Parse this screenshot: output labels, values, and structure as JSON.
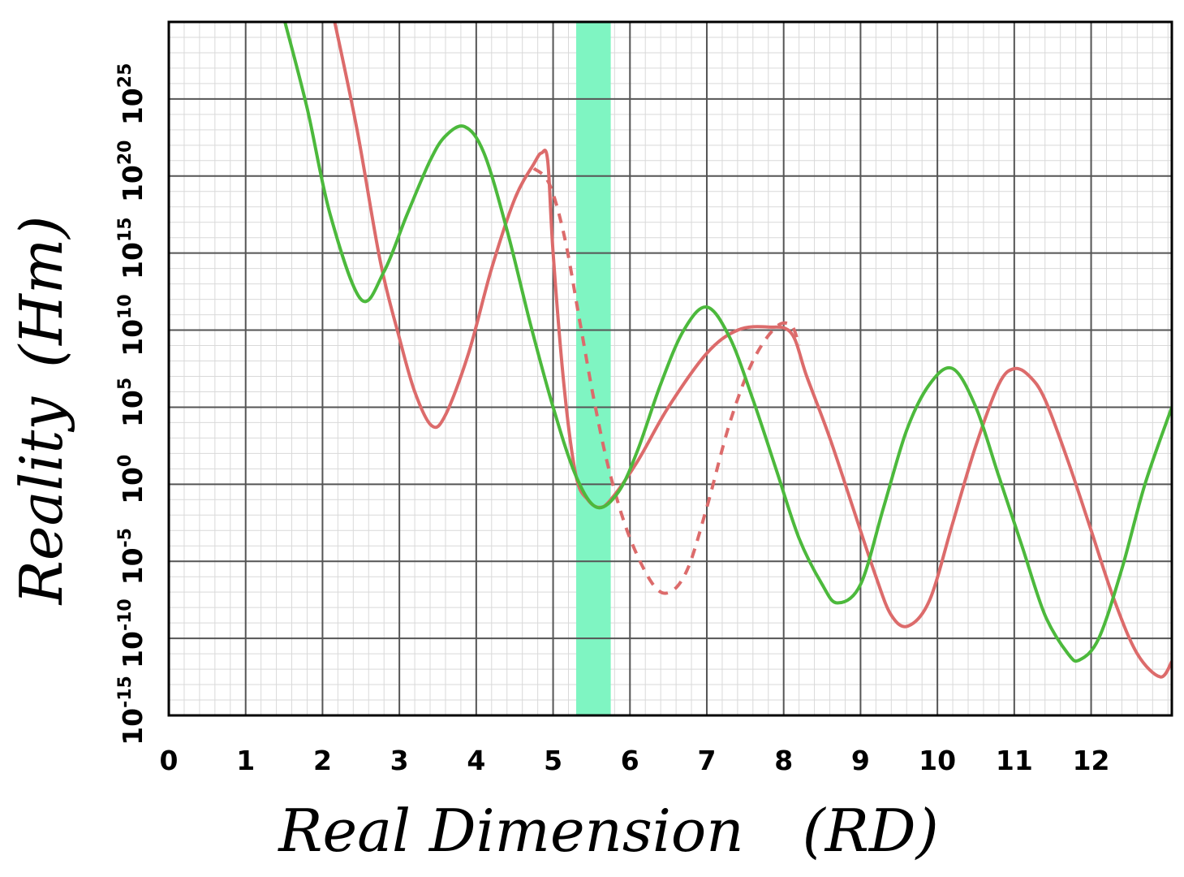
{
  "chart_data": {
    "type": "line",
    "xlabel": "Real Dimension  (RD)",
    "ylabel": "Reality (Hm)",
    "xlim": [
      0,
      13.05
    ],
    "ylim_log10": [
      -15,
      30
    ],
    "x_ticks": [
      "0",
      "1",
      "2",
      "3",
      "4",
      "5",
      "6",
      "7",
      "8",
      "9",
      "10",
      "11",
      "12"
    ],
    "y_ticks": [
      {
        "base": "10",
        "exp": "-15",
        "value": -15
      },
      {
        "base": "10",
        "exp": "-10",
        "value": -10
      },
      {
        "base": "10",
        "exp": "-5",
        "value": -5
      },
      {
        "base": "10",
        "exp": "0",
        "value": 0
      },
      {
        "base": "10",
        "exp": "5",
        "value": 5
      },
      {
        "base": "10",
        "exp": "10",
        "value": 10
      },
      {
        "base": "10",
        "exp": "15",
        "value": 15
      },
      {
        "base": "10",
        "exp": "20",
        "value": 20
      },
      {
        "base": "10",
        "exp": "25",
        "value": 25
      }
    ],
    "grid": true,
    "y_scale": "log",
    "highlight_band": {
      "x_start": 5.3,
      "x_end": 5.75,
      "color": "#7ff5c2"
    },
    "colors": {
      "green": "#4cb93c",
      "red": "#dc6b6b",
      "major_grid": "#555555",
      "minor_grid": "#d9d9d9",
      "axis": "#000000"
    },
    "series": [
      {
        "style": "solid",
        "color": "#4cb93c",
        "x": [
          1.5,
          1.8,
          2.1,
          2.5,
          2.8,
          3.1,
          3.4,
          3.6,
          3.85,
          4.1,
          4.4,
          4.7,
          5.0,
          5.3,
          5.57,
          5.85,
          6.1,
          6.4,
          6.7,
          7.0,
          7.3,
          7.6,
          7.9,
          8.2,
          8.5,
          8.7,
          9.0,
          9.3,
          9.6,
          9.9,
          10.2,
          10.5,
          10.8,
          11.1,
          11.4,
          11.7,
          11.85,
          12.1,
          12.4,
          12.7,
          13.05
        ],
        "y": [
          30.2,
          24.4,
          17.5,
          12.0,
          13.8,
          17.5,
          21.0,
          22.6,
          23.2,
          21.5,
          16.5,
          10.5,
          5.0,
          0.5,
          -1.5,
          -0.5,
          2.2,
          6.5,
          10.0,
          11.5,
          9.5,
          5.5,
          1.0,
          -3.5,
          -6.5,
          -7.7,
          -6.5,
          -1.5,
          3.5,
          6.5,
          7.5,
          5.0,
          0.5,
          -4.0,
          -8.5,
          -11.0,
          -11.4,
          -10.0,
          -5.5,
          0.0,
          5.0
        ]
      },
      {
        "style": "solid",
        "color": "#dc6b6b",
        "x": [
          2.15,
          2.45,
          2.75,
          3.0,
          3.2,
          3.42,
          3.6,
          3.9,
          4.2,
          4.5,
          4.75,
          4.85,
          4.93,
          5.0,
          5.15,
          5.3,
          5.45,
          5.6,
          5.75,
          6.1,
          6.5,
          7.0,
          7.4,
          7.8,
          8.1,
          8.3,
          8.6,
          8.9,
          9.2,
          9.4,
          9.62,
          9.9,
          10.2,
          10.5,
          10.8,
          11.0,
          11.2,
          11.4,
          11.7,
          12.0,
          12.3,
          12.6,
          12.9,
          13.05
        ],
        "y": [
          30.2,
          23.0,
          14.5,
          9.5,
          6.0,
          3.8,
          4.5,
          8.5,
          14.0,
          18.5,
          20.8,
          21.5,
          21.0,
          15.0,
          6.0,
          0.5,
          -1.0,
          -1.5,
          -1.0,
          1.5,
          5.0,
          8.5,
          10.0,
          10.2,
          9.8,
          7.0,
          3.0,
          -1.5,
          -6.0,
          -8.5,
          -9.2,
          -7.5,
          -2.5,
          2.5,
          6.5,
          7.5,
          7.0,
          5.5,
          1.5,
          -3.0,
          -7.5,
          -11.0,
          -12.5,
          -11.5
        ]
      },
      {
        "style": "dashed",
        "color": "#dc6b6b",
        "x": [
          4.75,
          4.95,
          5.15,
          5.35,
          5.55,
          5.75,
          6.0,
          6.3,
          6.52,
          6.75,
          7.0,
          7.3,
          7.6,
          7.9,
          8.1,
          8.2
        ],
        "y": [
          20.5,
          19.5,
          16.0,
          10.5,
          5.0,
          0.5,
          -3.5,
          -6.5,
          -7.0,
          -5.5,
          -1.5,
          4.0,
          8.0,
          10.2,
          10.3,
          9.0
        ]
      }
    ]
  }
}
